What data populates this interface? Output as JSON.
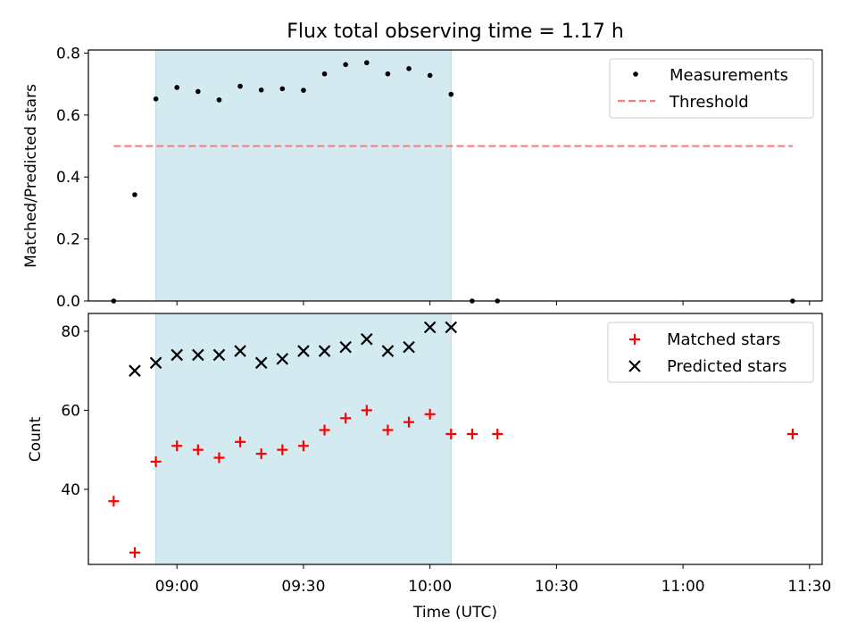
{
  "chart_data": [
    {
      "type": "scatter",
      "title": "Flux total observing time = 1.17 h",
      "ylabel": "Matched/Predicted stars",
      "xlabel": "",
      "xlim": [
        "08:39",
        "11:33"
      ],
      "ylim": [
        0,
        0.81
      ],
      "yticks": [
        "0.0",
        "0.2",
        "0.4",
        "0.6",
        "0.8"
      ],
      "shaded_interval": [
        "08:55",
        "10:05"
      ],
      "shade_color": "#d3eaf0",
      "legend_position": "top-right",
      "series": [
        {
          "name": "Measurements",
          "marker": "dot",
          "color": "#000000",
          "x": [
            "08:45",
            "08:50",
            "08:55",
            "09:00",
            "09:05",
            "09:10",
            "09:15",
            "09:20",
            "09:25",
            "09:30",
            "09:35",
            "09:40",
            "09:45",
            "09:50",
            "09:55",
            "10:00",
            "10:05",
            "10:10",
            "10:16",
            "11:26"
          ],
          "y": [
            0.0,
            0.343,
            0.652,
            0.689,
            0.676,
            0.649,
            0.693,
            0.681,
            0.685,
            0.68,
            0.733,
            0.763,
            0.769,
            0.733,
            0.75,
            0.728,
            0.667,
            0.0,
            0.0,
            0.0
          ]
        },
        {
          "name": "Threshold",
          "marker": "dashed-line",
          "color": "#f08080",
          "x": [
            "08:45",
            "11:26"
          ],
          "y": [
            0.5,
            0.5
          ]
        }
      ]
    },
    {
      "type": "scatter",
      "title": "",
      "ylabel": "Count",
      "xlabel": "Time (UTC)",
      "xlim": [
        "08:39",
        "11:33"
      ],
      "ylim": [
        21,
        84.5
      ],
      "yticks": [
        "40",
        "60",
        "80"
      ],
      "xticks": [
        "09:00",
        "09:30",
        "10:00",
        "10:30",
        "11:00",
        "11:30"
      ],
      "shaded_interval": [
        "08:55",
        "10:05"
      ],
      "shade_color": "#d3eaf0",
      "legend_position": "top-right",
      "series": [
        {
          "name": "Matched stars",
          "marker": "plus",
          "color": "#ff0000",
          "x": [
            "08:45",
            "08:50",
            "08:55",
            "09:00",
            "09:05",
            "09:10",
            "09:15",
            "09:20",
            "09:25",
            "09:30",
            "09:35",
            "09:40",
            "09:45",
            "09:50",
            "09:55",
            "10:00",
            "10:05",
            "10:10",
            "10:16",
            "11:26"
          ],
          "y": [
            37,
            24,
            47,
            51,
            50,
            48,
            52,
            49,
            50,
            51,
            55,
            58,
            60,
            55,
            57,
            59,
            54,
            54,
            54,
            54
          ]
        },
        {
          "name": "Predicted stars",
          "marker": "x",
          "color": "#000000",
          "x": [
            "08:50",
            "08:55",
            "09:00",
            "09:05",
            "09:10",
            "09:15",
            "09:20",
            "09:25",
            "09:30",
            "09:35",
            "09:40",
            "09:45",
            "09:50",
            "09:55",
            "10:00",
            "10:05"
          ],
          "y": [
            70,
            72,
            74,
            74,
            74,
            75,
            72,
            73,
            75,
            75,
            76,
            78,
            75,
            76,
            81,
            81
          ]
        }
      ]
    }
  ]
}
